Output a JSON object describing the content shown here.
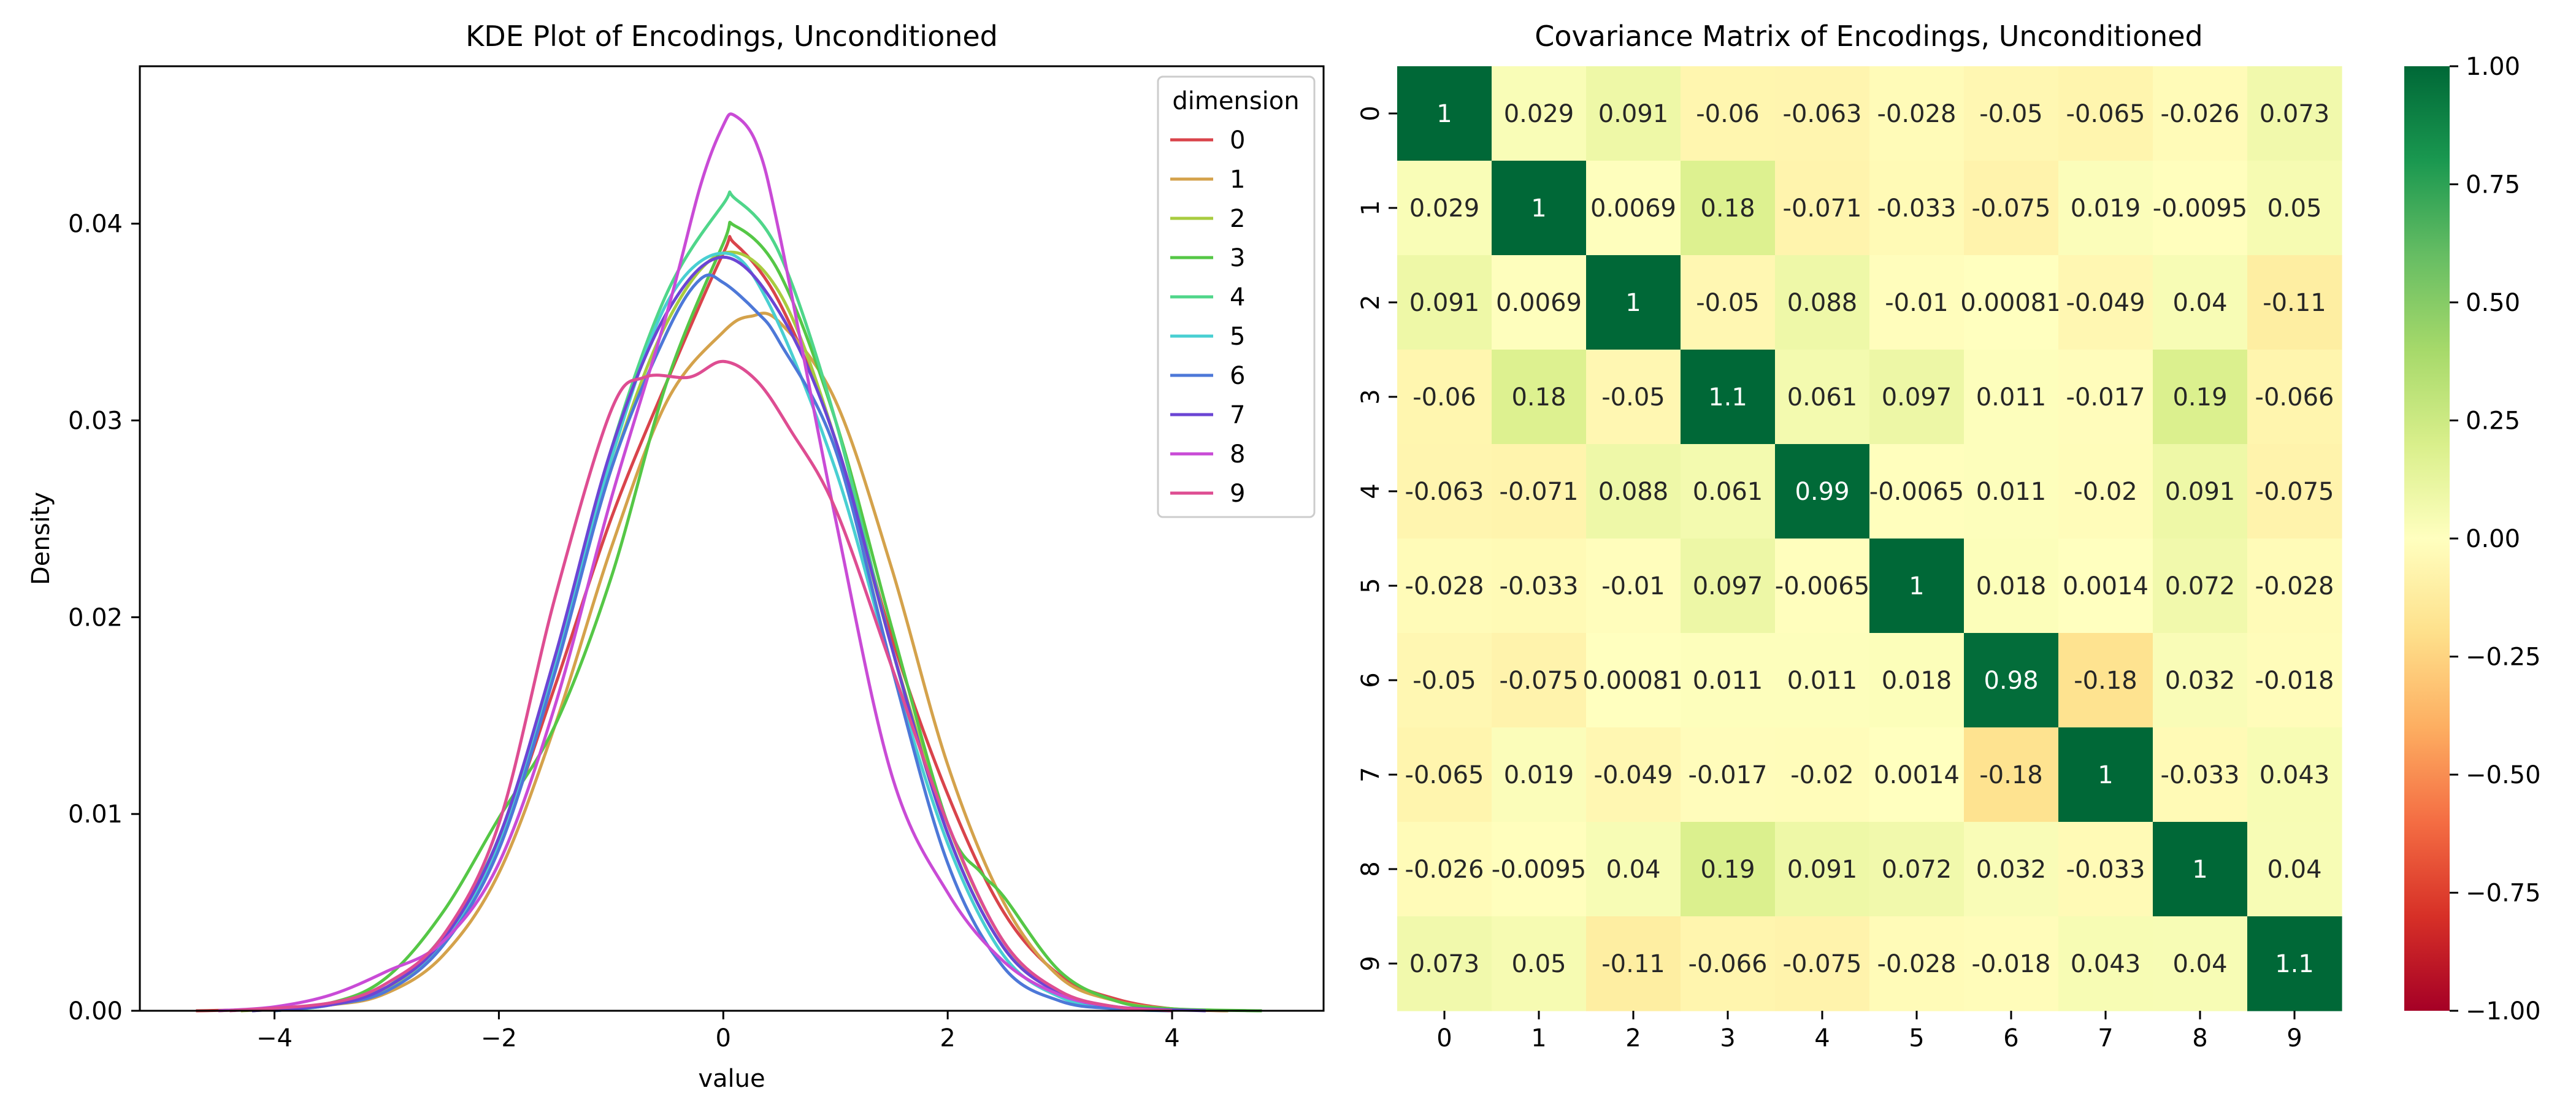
{
  "chart_data": [
    {
      "type": "line",
      "title": "KDE Plot of Encodings, Unconditioned",
      "xlabel": "value",
      "ylabel": "Density",
      "xlim": [
        -5.2,
        5.35
      ],
      "ylim": [
        0,
        0.048
      ],
      "xticks": [
        -4,
        -2,
        0,
        2,
        4
      ],
      "xtick_labels": [
        "−4",
        "−2",
        "0",
        "2",
        "4"
      ],
      "yticks": [
        0,
        0.01,
        0.02,
        0.03,
        0.04
      ],
      "ytick_labels": [
        "0.00",
        "0.01",
        "0.02",
        "0.03",
        "0.04"
      ],
      "grid": false,
      "legend": {
        "title": "dimension",
        "position": "top-right"
      },
      "series": [
        {
          "name": "0",
          "color": "#d9444b",
          "points": [
            [
              -4.7,
              0
            ],
            [
              -4,
              0.0001
            ],
            [
              -3.5,
              0.0004
            ],
            [
              -3,
              0.0012
            ],
            [
              -2.5,
              0.0035
            ],
            [
              -2,
              0.0085
            ],
            [
              -1.5,
              0.0165
            ],
            [
              -1,
              0.025
            ],
            [
              -0.5,
              0.032
            ],
            [
              0,
              0.0385
            ],
            [
              0.1,
              0.039
            ],
            [
              0.5,
              0.036
            ],
            [
              1,
              0.029
            ],
            [
              1.5,
              0.019
            ],
            [
              2,
              0.011
            ],
            [
              2.5,
              0.005
            ],
            [
              3,
              0.0018
            ],
            [
              3.5,
              0.0006
            ],
            [
              4,
              0.0001
            ],
            [
              4.5,
              0
            ]
          ]
        },
        {
          "name": "1",
          "color": "#d4a24b",
          "points": [
            [
              -4.5,
              0
            ],
            [
              -3.5,
              0.0003
            ],
            [
              -3,
              0.0009
            ],
            [
              -2.5,
              0.0028
            ],
            [
              -2,
              0.007
            ],
            [
              -1.5,
              0.0145
            ],
            [
              -1,
              0.0235
            ],
            [
              -0.5,
              0.031
            ],
            [
              0,
              0.0345
            ],
            [
              0.25,
              0.0353
            ],
            [
              0.5,
              0.035
            ],
            [
              1,
              0.031
            ],
            [
              1.5,
              0.0225
            ],
            [
              2,
              0.0125
            ],
            [
              2.5,
              0.0055
            ],
            [
              3,
              0.0017
            ],
            [
              3.5,
              0.0005
            ],
            [
              4,
              0.0001
            ],
            [
              4.5,
              0
            ]
          ]
        },
        {
          "name": "2",
          "color": "#a8cc3f",
          "points": [
            [
              -4.3,
              0
            ],
            [
              -3.5,
              0.0003
            ],
            [
              -3,
              0.0011
            ],
            [
              -2.5,
              0.0035
            ],
            [
              -2,
              0.0085
            ],
            [
              -1.5,
              0.0175
            ],
            [
              -1,
              0.0275
            ],
            [
              -0.5,
              0.035
            ],
            [
              0,
              0.0385
            ],
            [
              0.5,
              0.0365
            ],
            [
              1,
              0.029
            ],
            [
              1.5,
              0.0185
            ],
            [
              2,
              0.0095
            ],
            [
              2.5,
              0.0035
            ],
            [
              3,
              0.0009
            ],
            [
              3.5,
              0.0002
            ],
            [
              4,
              0
            ]
          ]
        },
        {
          "name": "3",
          "color": "#55c746",
          "points": [
            [
              -4.2,
              0
            ],
            [
              -3.5,
              0.0004
            ],
            [
              -3,
              0.0017
            ],
            [
              -2.5,
              0.005
            ],
            [
              -2,
              0.0098
            ],
            [
              -1.5,
              0.0145
            ],
            [
              -1,
              0.022
            ],
            [
              -0.5,
              0.032
            ],
            [
              0,
              0.039
            ],
            [
              0.1,
              0.0399
            ],
            [
              0.5,
              0.0375
            ],
            [
              1,
              0.03
            ],
            [
              1.5,
              0.0195
            ],
            [
              2,
              0.0095
            ],
            [
              2.3,
              0.007
            ],
            [
              2.5,
              0.0058
            ],
            [
              3,
              0.002
            ],
            [
              3.5,
              0.0005
            ],
            [
              4,
              0.0001
            ],
            [
              4.8,
              0
            ]
          ]
        },
        {
          "name": "4",
          "color": "#4fd68a",
          "points": [
            [
              -4,
              0
            ],
            [
              -3.5,
              0.0003
            ],
            [
              -3,
              0.0012
            ],
            [
              -2.5,
              0.0038
            ],
            [
              -2,
              0.0088
            ],
            [
              -1.5,
              0.0178
            ],
            [
              -1,
              0.0285
            ],
            [
              -0.5,
              0.0365
            ],
            [
              0,
              0.041
            ],
            [
              0.1,
              0.0413
            ],
            [
              0.5,
              0.0385
            ],
            [
              1,
              0.03
            ],
            [
              1.5,
              0.0185
            ],
            [
              2,
              0.009
            ],
            [
              2.5,
              0.0032
            ],
            [
              3,
              0.0009
            ],
            [
              3.5,
              0.0002
            ],
            [
              4,
              0
            ]
          ]
        },
        {
          "name": "5",
          "color": "#49cfd2",
          "points": [
            [
              -4,
              0
            ],
            [
              -3.5,
              0.0003
            ],
            [
              -3,
              0.0012
            ],
            [
              -2.5,
              0.0035
            ],
            [
              -2,
              0.0085
            ],
            [
              -1.5,
              0.0175
            ],
            [
              -1,
              0.028
            ],
            [
              -0.5,
              0.036
            ],
            [
              0,
              0.0385
            ],
            [
              0.4,
              0.036
            ],
            [
              1,
              0.0275
            ],
            [
              1.5,
              0.0175
            ],
            [
              2,
              0.0085
            ],
            [
              2.5,
              0.0028
            ],
            [
              3,
              0.0007
            ],
            [
              3.5,
              0.0001
            ],
            [
              4,
              0
            ]
          ]
        },
        {
          "name": "6",
          "color": "#4d78d8",
          "points": [
            [
              -4,
              0
            ],
            [
              -3.5,
              0.0003
            ],
            [
              -3,
              0.001
            ],
            [
              -2.5,
              0.0033
            ],
            [
              -2,
              0.0082
            ],
            [
              -1.5,
              0.0172
            ],
            [
              -1,
              0.0275
            ],
            [
              -0.5,
              0.0345
            ],
            [
              -0.2,
              0.0372
            ],
            [
              0,
              0.037
            ],
            [
              0.3,
              0.0355
            ],
            [
              0.5,
              0.034
            ],
            [
              1,
              0.0285
            ],
            [
              1.5,
              0.0175
            ],
            [
              2,
              0.0075
            ],
            [
              2.5,
              0.0022
            ],
            [
              3,
              0.0005
            ],
            [
              3.5,
              0.0001
            ],
            [
              4,
              0
            ]
          ]
        },
        {
          "name": "7",
          "color": "#6b45d4",
          "points": [
            [
              -4.2,
              0
            ],
            [
              -3.5,
              0.0003
            ],
            [
              -3,
              0.0012
            ],
            [
              -2.5,
              0.0036
            ],
            [
              -2,
              0.0088
            ],
            [
              -1.5,
              0.018
            ],
            [
              -1,
              0.0285
            ],
            [
              -0.5,
              0.0355
            ],
            [
              0,
              0.0383
            ],
            [
              0.5,
              0.0355
            ],
            [
              1,
              0.029
            ],
            [
              1.5,
              0.0185
            ],
            [
              2,
              0.009
            ],
            [
              2.5,
              0.0032
            ],
            [
              3,
              0.0009
            ],
            [
              3.5,
              0.0002
            ],
            [
              4.3,
              0
            ]
          ]
        },
        {
          "name": "8",
          "color": "#c94bd6",
          "points": [
            [
              -4.5,
              0
            ],
            [
              -4,
              0.0002
            ],
            [
              -3.5,
              0.0008
            ],
            [
              -3,
              0.002
            ],
            [
              -2.5,
              0.0035
            ],
            [
              -2,
              0.0075
            ],
            [
              -1.5,
              0.0155
            ],
            [
              -1,
              0.026
            ],
            [
              -0.5,
              0.0355
            ],
            [
              -0.2,
              0.042
            ],
            [
              0,
              0.045
            ],
            [
              0.1,
              0.0455
            ],
            [
              0.3,
              0.044
            ],
            [
              0.5,
              0.0395
            ],
            [
              1,
              0.025
            ],
            [
              1.5,
              0.012
            ],
            [
              2,
              0.006
            ],
            [
              2.5,
              0.0025
            ],
            [
              3,
              0.0008
            ],
            [
              3.5,
              0.0002
            ],
            [
              4,
              0
            ]
          ]
        },
        {
          "name": "9",
          "color": "#de4d92",
          "points": [
            [
              -4.4,
              0
            ],
            [
              -3.5,
              0.0004
            ],
            [
              -3,
              0.0014
            ],
            [
              -2.5,
              0.0038
            ],
            [
              -2,
              0.0095
            ],
            [
              -1.5,
              0.021
            ],
            [
              -1,
              0.0305
            ],
            [
              -0.7,
              0.0322
            ],
            [
              -0.3,
              0.0322
            ],
            [
              0,
              0.033
            ],
            [
              0.3,
              0.032
            ],
            [
              0.6,
              0.0295
            ],
            [
              1,
              0.0255
            ],
            [
              1.5,
              0.0175
            ],
            [
              2,
              0.0095
            ],
            [
              2.5,
              0.0035
            ],
            [
              3,
              0.001
            ],
            [
              3.5,
              0.0002
            ],
            [
              4,
              0
            ]
          ]
        }
      ]
    },
    {
      "type": "heatmap",
      "title": "Covariance Matrix of Encodings, Unconditioned",
      "xlabel": "",
      "ylabel": "",
      "x_categories": [
        "0",
        "1",
        "2",
        "3",
        "4",
        "5",
        "6",
        "7",
        "8",
        "9"
      ],
      "y_categories": [
        "0",
        "1",
        "2",
        "3",
        "4",
        "5",
        "6",
        "7",
        "8",
        "9"
      ],
      "colormap": "RdYlGn",
      "vmin": -1,
      "vmax": 1,
      "colorbar_ticks": [
        1,
        0.75,
        0.5,
        0.25,
        0,
        -0.25,
        -0.5,
        -0.75,
        -1
      ],
      "colorbar_labels": [
        "1.00",
        "0.75",
        "0.50",
        "0.25",
        "0.00",
        "−0.25",
        "−0.50",
        "−0.75",
        "−1.00"
      ],
      "values": [
        [
          1,
          0.029,
          0.091,
          -0.06,
          -0.063,
          -0.028,
          -0.05,
          -0.065,
          -0.026,
          0.073
        ],
        [
          0.029,
          1,
          0.0069,
          0.18,
          -0.071,
          -0.033,
          -0.075,
          0.019,
          -0.0095,
          0.05
        ],
        [
          0.091,
          0.0069,
          1,
          -0.05,
          0.088,
          -0.01,
          0.00081,
          -0.049,
          0.04,
          -0.11
        ],
        [
          -0.06,
          0.18,
          -0.05,
          1.1,
          0.061,
          0.097,
          0.011,
          -0.017,
          0.19,
          -0.066
        ],
        [
          -0.063,
          -0.071,
          0.088,
          0.061,
          0.99,
          -0.0065,
          0.011,
          -0.02,
          0.091,
          -0.075
        ],
        [
          -0.028,
          -0.033,
          -0.01,
          0.097,
          -0.0065,
          1,
          0.018,
          0.0014,
          0.072,
          -0.028
        ],
        [
          -0.05,
          -0.075,
          0.00081,
          0.011,
          0.011,
          0.018,
          0.98,
          -0.18,
          0.032,
          -0.018
        ],
        [
          -0.065,
          0.019,
          -0.049,
          -0.017,
          -0.02,
          0.0014,
          -0.18,
          1,
          -0.033,
          0.043
        ],
        [
          -0.026,
          -0.0095,
          0.04,
          0.19,
          0.091,
          0.072,
          0.032,
          -0.033,
          1,
          0.04
        ],
        [
          0.073,
          0.05,
          -0.11,
          -0.066,
          -0.075,
          -0.028,
          -0.018,
          0.043,
          0.04,
          1.1
        ]
      ],
      "annotations": [
        [
          "1",
          "0.029",
          "0.091",
          "-0.06",
          "-0.063",
          "-0.028",
          "-0.05",
          "-0.065",
          "-0.026",
          "0.073"
        ],
        [
          "0.029",
          "1",
          "0.0069",
          "0.18",
          "-0.071",
          "-0.033",
          "-0.075",
          "0.019",
          "-0.0095",
          "0.05"
        ],
        [
          "0.091",
          "0.0069",
          "1",
          "-0.05",
          "0.088",
          "-0.01",
          "0.00081",
          "-0.049",
          "0.04",
          "-0.11"
        ],
        [
          "-0.06",
          "0.18",
          "-0.05",
          "1.1",
          "0.061",
          "0.097",
          "0.011",
          "-0.017",
          "0.19",
          "-0.066"
        ],
        [
          "-0.063",
          "-0.071",
          "0.088",
          "0.061",
          "0.99",
          "-0.0065",
          "0.011",
          "-0.02",
          "0.091",
          "-0.075"
        ],
        [
          "-0.028",
          "-0.033",
          "-0.01",
          "0.097",
          "-0.0065",
          "1",
          "0.018",
          "0.0014",
          "0.072",
          "-0.028"
        ],
        [
          "-0.05",
          "-0.075",
          "0.00081",
          "0.011",
          "0.011",
          "0.018",
          "0.98",
          "-0.18",
          "0.032",
          "-0.018"
        ],
        [
          "-0.065",
          "0.019",
          "-0.049",
          "-0.017",
          "-0.02",
          "0.0014",
          "-0.18",
          "1",
          "-0.033",
          "0.043"
        ],
        [
          "-0.026",
          "-0.0095",
          "0.04",
          "0.19",
          "0.091",
          "0.072",
          "0.032",
          "-0.033",
          "1",
          "0.04"
        ],
        [
          "0.073",
          "0.05",
          "-0.11",
          "-0.066",
          "-0.075",
          "-0.028",
          "-0.018",
          "0.043",
          "0.04",
          "1.1"
        ]
      ]
    }
  ]
}
